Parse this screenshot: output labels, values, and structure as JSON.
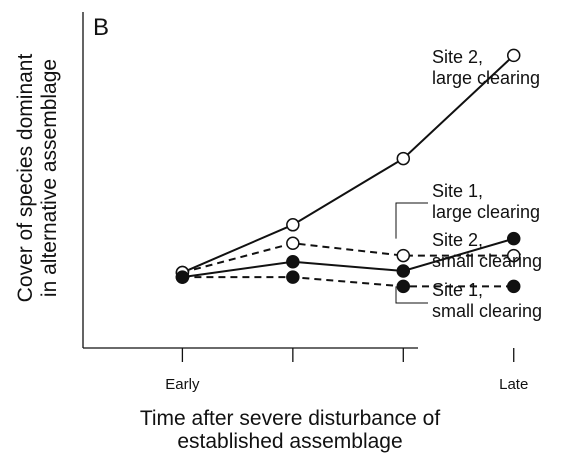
{
  "panel_label": "B",
  "chart_data": {
    "type": "line",
    "ylabel": [
      "Cover of species dominant",
      "in alternative assemblage"
    ],
    "xlabel": [
      "Time after severe disturbance of",
      "established assemblage"
    ],
    "x_ticks": [
      1,
      2,
      3,
      4
    ],
    "x_tick_labels": [
      "Early",
      "",
      "",
      "Late"
    ],
    "xlim": [
      0.1,
      4.6
    ],
    "ylim": [
      0,
      100
    ],
    "grid": false,
    "series": [
      {
        "name": [
          "Site 2,",
          "large clearing"
        ],
        "marker": "open",
        "line": "solid",
        "values": [
          24.5,
          40,
          61.5,
          95
        ]
      },
      {
        "name": [
          "Site 1,",
          "large clearing"
        ],
        "marker": "filled",
        "line": "solid",
        "values": [
          23,
          28,
          25,
          35.5
        ]
      },
      {
        "name": [
          "Site 2,",
          "small clearing"
        ],
        "marker": "open",
        "line": "dashed",
        "values": [
          24.5,
          34,
          30,
          30
        ]
      },
      {
        "name": [
          "Site 1,",
          "small clearing"
        ],
        "marker": "filled",
        "line": "dashed",
        "values": [
          23,
          23,
          20,
          20
        ]
      }
    ],
    "colors": {
      "line": "#111111",
      "open_fill": "#ffffff",
      "filled_fill": "#111111"
    }
  }
}
